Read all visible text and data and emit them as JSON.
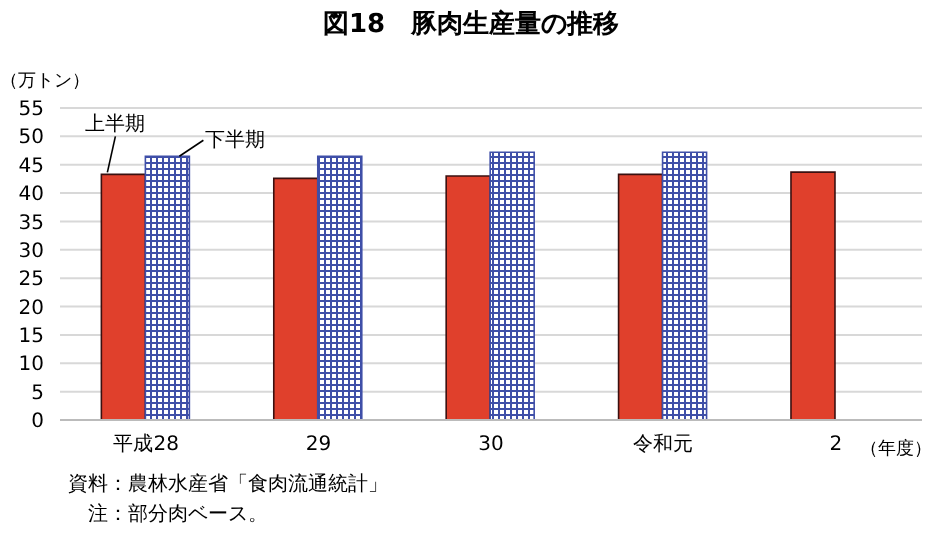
{
  "chart_data": {
    "type": "bar",
    "title": "図18　豚肉生産量の推移",
    "ylabel": "（万トン）",
    "xlabel": "（年度）",
    "categories": [
      "平成28",
      "29",
      "30",
      "令和元",
      "2"
    ],
    "series": [
      {
        "name": "上半期",
        "color": "#e0402c",
        "values": [
          43.3,
          42.6,
          43.0,
          43.3,
          43.7
        ]
      },
      {
        "name": "下半期",
        "color": "#3f4fa8",
        "values": [
          46.5,
          46.5,
          47.2,
          47.2,
          null
        ]
      }
    ],
    "ylim": [
      0,
      55
    ],
    "yticks": [
      0,
      5,
      10,
      15,
      20,
      25,
      30,
      35,
      40,
      45,
      50,
      55
    ],
    "grid": "y",
    "legend": false,
    "annotations": [
      "資料：農林水産省「食肉流通統計」",
      "　注：部分肉ベース。"
    ]
  }
}
